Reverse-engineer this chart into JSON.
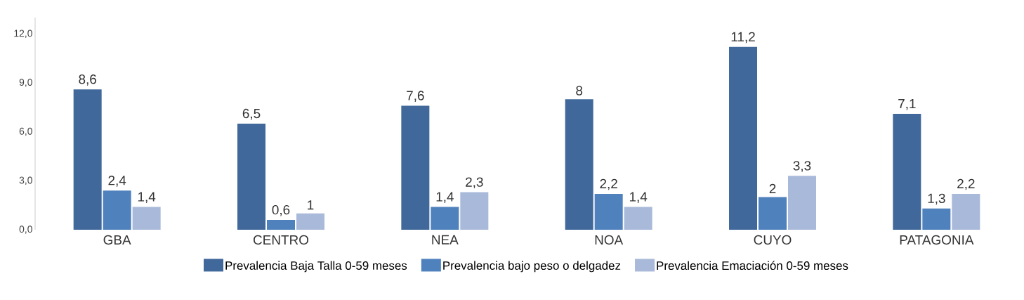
{
  "chart_data": {
    "type": "bar",
    "categories": [
      "GBA",
      "CENTRO",
      "NEA",
      "NOA",
      "CUYO",
      "PATAGONIA"
    ],
    "series": [
      {
        "name": "Prevalencia Baja Talla 0-59 meses",
        "color": "#41689a",
        "values": [
          8.6,
          6.5,
          7.6,
          8,
          11.2,
          7.1
        ],
        "value_labels": [
          "8,6",
          "6,5",
          "7,6",
          "8",
          "11,2",
          "7,1"
        ]
      },
      {
        "name": "Prevalencia bajo peso o delgadez",
        "color": "#4f81bd",
        "values": [
          2.4,
          0.6,
          1.4,
          2.2,
          2,
          1.3
        ],
        "value_labels": [
          "2,4",
          "0,6",
          "1,4",
          "2,2",
          "2",
          "1,3"
        ]
      },
      {
        "name": "Prevalencia Emaciación 0-59 meses",
        "color": "#a9b9d9",
        "values": [
          1.4,
          1,
          2.3,
          1.4,
          3.3,
          2.2
        ],
        "value_labels": [
          "1,4",
          "1",
          "2,3",
          "1,4",
          "3,3",
          "2,2"
        ]
      }
    ],
    "ylim": [
      0,
      13
    ],
    "yticks": [
      {
        "value": 0,
        "label": "0,0"
      },
      {
        "value": 3,
        "label": "3,0"
      },
      {
        "value": 6,
        "label": "6,0"
      },
      {
        "value": 9,
        "label": "9,0"
      },
      {
        "value": 12,
        "label": "12,0"
      }
    ],
    "grid": false,
    "legend": "bottom"
  }
}
